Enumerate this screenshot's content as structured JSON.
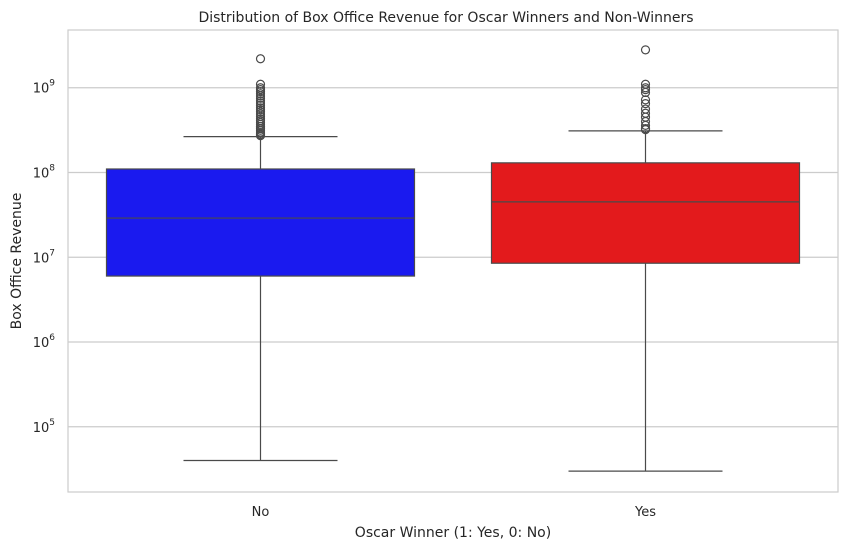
{
  "chart_data": {
    "type": "box",
    "title": "Distribution of Box Office Revenue for Oscar Winners and Non-Winners",
    "xlabel": "Oscar Winner (1: Yes, 0: No)",
    "ylabel": "Box Office Revenue",
    "yscale": "log",
    "ylim": [
      17000,
      4800000000
    ],
    "ytick_exponents": [
      5,
      6,
      7,
      8,
      9
    ],
    "grid": "horizontal",
    "categories": [
      "No",
      "Yes"
    ],
    "boxes": [
      {
        "category": "No",
        "color": "#1a1aef",
        "whisker_low": 40000,
        "q1": 6000000,
        "median": 29000000,
        "q3": 110000000,
        "whisker_high": 265000000,
        "outliers": [
          2200000000,
          1100000000,
          1000000000,
          950000000,
          900000000,
          850000000,
          800000000,
          750000000,
          700000000,
          660000000,
          620000000,
          580000000,
          550000000,
          520000000,
          490000000,
          460000000,
          430000000,
          410000000,
          390000000,
          370000000,
          350000000,
          330000000,
          315000000,
          300000000,
          290000000,
          280000000,
          272000000
        ]
      },
      {
        "category": "Yes",
        "color": "#e31a1c",
        "whisker_low": 30000,
        "q1": 8500000,
        "median": 45000000,
        "q3": 130000000,
        "whisker_high": 310000000,
        "outliers": [
          2800000000,
          1100000000,
          1000000000,
          950000000,
          880000000,
          720000000,
          650000000,
          560000000,
          500000000,
          450000000,
          400000000,
          360000000,
          330000000,
          320000000
        ]
      }
    ]
  }
}
